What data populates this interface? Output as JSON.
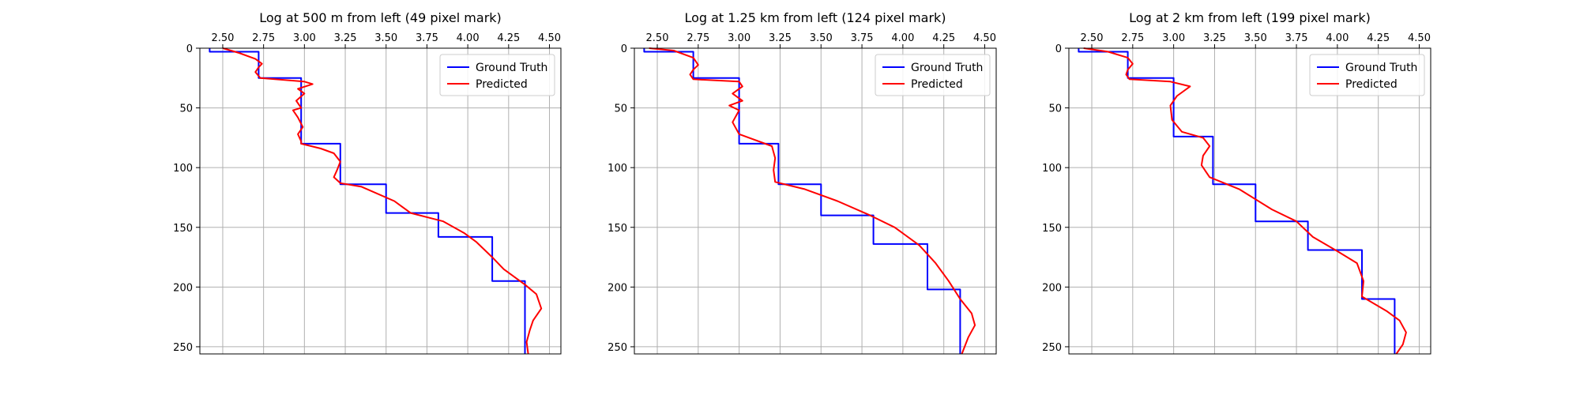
{
  "chart_data": [
    {
      "type": "line",
      "title": "Log at 500 m from left (49 pixel mark)",
      "xlabel": "",
      "ylabel": "",
      "x_axis_position": "top",
      "y_axis_inverted": true,
      "xlim": [
        2.36,
        4.57
      ],
      "ylim": [
        256,
        0
      ],
      "xticks": [
        "2.50",
        "2.75",
        "3.00",
        "3.25",
        "3.50",
        "3.75",
        "4.00",
        "4.25",
        "4.50"
      ],
      "yticks": [
        "0",
        "50",
        "100",
        "150",
        "200",
        "250"
      ],
      "grid": true,
      "legend": "top-right",
      "colors": {
        "ground_truth": "#0000ff",
        "predicted": "#ff0000"
      },
      "series": [
        {
          "name": "Ground Truth",
          "x": [
            2.42,
            2.42,
            2.72,
            2.72,
            2.98,
            2.98,
            3.22,
            3.22,
            3.5,
            3.5,
            3.82,
            3.82,
            4.15,
            4.15,
            4.35,
            4.35
          ],
          "y": [
            0,
            3,
            3,
            25,
            25,
            80,
            80,
            114,
            114,
            138,
            138,
            158,
            158,
            195,
            195,
            256
          ]
        },
        {
          "name": "Predicted",
          "x": [
            2.5,
            2.6,
            2.7,
            2.74,
            2.72,
            2.7,
            2.73,
            3.0,
            3.05,
            2.96,
            3.0,
            2.95,
            2.98,
            2.93,
            2.96,
            2.99,
            2.96,
            2.98,
            2.98,
            3.1,
            3.18,
            3.22,
            3.2,
            3.18,
            3.22,
            3.35,
            3.55,
            3.65,
            3.85,
            3.98,
            4.05,
            4.15,
            4.22,
            4.35,
            4.42,
            4.45,
            4.4,
            4.38,
            4.36,
            4.37
          ],
          "y": [
            0,
            4,
            9,
            13,
            16,
            20,
            25,
            28,
            30,
            34,
            38,
            44,
            50,
            52,
            58,
            66,
            72,
            78,
            80,
            84,
            88,
            95,
            102,
            108,
            113,
            116,
            128,
            138,
            145,
            155,
            162,
            175,
            185,
            198,
            206,
            218,
            228,
            236,
            246,
            256
          ]
        }
      ]
    },
    {
      "type": "line",
      "title": "Log at 1.25 km from left (124 pixel mark)",
      "xlabel": "",
      "ylabel": "",
      "x_axis_position": "top",
      "y_axis_inverted": true,
      "xlim": [
        2.36,
        4.57
      ],
      "ylim": [
        256,
        0
      ],
      "xticks": [
        "2.50",
        "2.75",
        "3.00",
        "3.25",
        "3.50",
        "3.75",
        "4.00",
        "4.25",
        "4.50"
      ],
      "yticks": [
        "0",
        "50",
        "100",
        "150",
        "200",
        "250"
      ],
      "grid": true,
      "legend": "top-right",
      "colors": {
        "ground_truth": "#0000ff",
        "predicted": "#ff0000"
      },
      "series": [
        {
          "name": "Ground Truth",
          "x": [
            2.42,
            2.42,
            2.72,
            2.72,
            3.0,
            3.0,
            3.24,
            3.24,
            3.5,
            3.5,
            3.82,
            3.82,
            4.15,
            4.15,
            4.35,
            4.35
          ],
          "y": [
            0,
            3,
            3,
            25,
            25,
            80,
            80,
            114,
            114,
            140,
            140,
            164,
            164,
            202,
            202,
            256
          ]
        },
        {
          "name": "Predicted",
          "x": [
            2.45,
            2.6,
            2.72,
            2.75,
            2.72,
            2.7,
            2.72,
            3.0,
            3.02,
            2.96,
            3.02,
            2.94,
            3.0,
            2.96,
            3.0,
            3.2,
            3.22,
            3.21,
            3.22,
            3.4,
            3.6,
            3.8,
            3.95,
            4.1,
            4.2,
            4.28,
            4.35,
            4.42,
            4.44,
            4.4,
            4.36
          ],
          "y": [
            0,
            2,
            8,
            14,
            18,
            22,
            26,
            28,
            32,
            38,
            44,
            48,
            52,
            62,
            72,
            82,
            92,
            102,
            112,
            118,
            128,
            140,
            150,
            165,
            180,
            195,
            210,
            222,
            232,
            242,
            256
          ]
        }
      ]
    },
    {
      "type": "line",
      "title": "Log at 2 km from left (199 pixel mark)",
      "xlabel": "",
      "ylabel": "",
      "x_axis_position": "top",
      "y_axis_inverted": true,
      "xlim": [
        2.36,
        4.57
      ],
      "ylim": [
        256,
        0
      ],
      "xticks": [
        "2.50",
        "2.75",
        "3.00",
        "3.25",
        "3.50",
        "3.75",
        "4.00",
        "4.25",
        "4.50"
      ],
      "yticks": [
        "0",
        "50",
        "100",
        "150",
        "200",
        "250"
      ],
      "grid": true,
      "legend": "top-right",
      "colors": {
        "ground_truth": "#0000ff",
        "predicted": "#ff0000"
      },
      "series": [
        {
          "name": "Ground Truth",
          "x": [
            2.42,
            2.42,
            2.72,
            2.72,
            3.0,
            3.0,
            3.24,
            3.24,
            3.5,
            3.5,
            3.82,
            3.82,
            4.15,
            4.15,
            4.35,
            4.35
          ],
          "y": [
            0,
            3,
            3,
            25,
            25,
            74,
            74,
            114,
            114,
            145,
            145,
            169,
            169,
            210,
            210,
            256
          ]
        },
        {
          "name": "Predicted",
          "x": [
            2.45,
            2.6,
            2.72,
            2.75,
            2.72,
            2.71,
            2.73,
            2.98,
            3.1,
            3.02,
            2.98,
            2.99,
            3.05,
            3.18,
            3.22,
            3.18,
            3.17,
            3.22,
            3.4,
            3.6,
            3.75,
            3.85,
            4.0,
            4.12,
            4.16,
            4.15,
            4.3,
            4.38,
            4.42,
            4.4,
            4.36
          ],
          "y": [
            0,
            3,
            8,
            13,
            18,
            22,
            26,
            28,
            32,
            40,
            48,
            60,
            70,
            75,
            82,
            90,
            98,
            108,
            118,
            135,
            145,
            158,
            170,
            180,
            195,
            208,
            220,
            228,
            238,
            248,
            256
          ]
        }
      ]
    }
  ]
}
